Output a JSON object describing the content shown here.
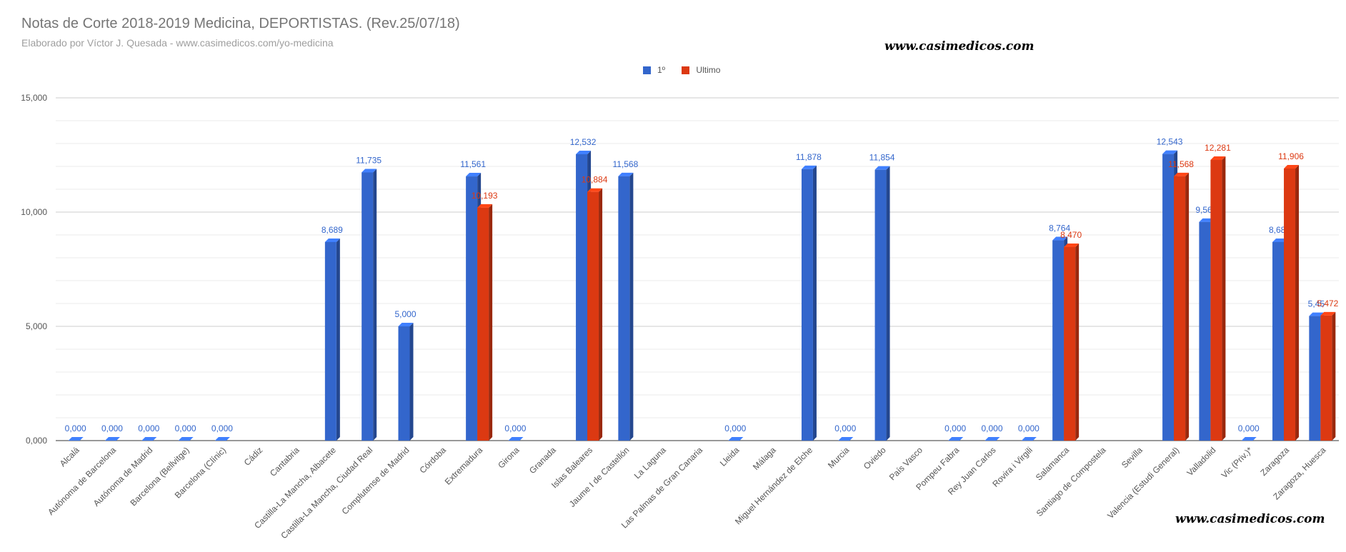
{
  "colors": {
    "first": "#3366cc",
    "last": "#dc3912",
    "grid": "#cccccc",
    "gridMinor": "#ebebeb",
    "axisText": "#555555"
  },
  "watermark_text": "www.casimedicos.com",
  "chart_data": {
    "type": "bar",
    "title": "Notas de Corte 2018-2019 Medicina, DEPORTISTAS. (Rev.25/07/18)",
    "subtitle": "Elaborado por Víctor J. Quesada - www.casimedicos.com/yo-medicina",
    "legend_position": "top",
    "grid": true,
    "ylim": [
      0,
      15
    ],
    "yticks": [
      0,
      5,
      10,
      15
    ],
    "ytick_labels": [
      "0,000",
      "5,000",
      "10,000",
      "15,000"
    ],
    "categories": [
      "Alcalá",
      "Autónoma de Barcelona",
      "Autónoma de Madrid",
      "Barcelona (Bellvitge)",
      "Barcelona (Clínic)",
      "Cádiz",
      "Cantabria",
      "Castilla-La Mancha, Albacete",
      "Castilla-La Mancha, Ciudad Real",
      "Complutense de Madrid",
      "Córdoba",
      "Extremadura",
      "Girona",
      "Granada",
      "Islas Baleares",
      "Jaume I de Castellón",
      "La Laguna",
      "Las Palmas de Gran Canaria",
      "Lleida",
      "Málaga",
      "Miguel Hernández de Elche",
      "Murcia",
      "Oviedo",
      "País Vasco",
      "Pompeu Fabra",
      "Rey Juan Carlos",
      "Rovira i Virgili",
      "Salamanca",
      "Santiago de Compostela",
      "Sevilla",
      "Valencia (Estudi General)",
      "Valladolid",
      "Vic (Priv.)*",
      "Zaragoza",
      "Zaragoza, Huesca"
    ],
    "series": [
      {
        "name": "1º",
        "values": [
          0,
          0,
          0,
          0,
          0,
          null,
          null,
          8.689,
          11.735,
          5.0,
          null,
          11.561,
          0,
          null,
          12.532,
          11.568,
          null,
          null,
          0,
          null,
          11.878,
          0,
          11.854,
          null,
          0,
          0,
          0,
          8.764,
          null,
          null,
          12.543,
          9.568,
          0,
          8.689,
          5.45
        ],
        "labels": [
          "0,000",
          "0,000",
          "0,000",
          "0,000",
          "0,000",
          null,
          null,
          "8,689",
          "11,735",
          "5,000",
          null,
          "11,561",
          "0,000",
          null,
          "12,532",
          "11,568",
          null,
          null,
          "0,000",
          null,
          "11,878",
          "0,000",
          "11,854",
          null,
          "0,000",
          "0,000",
          "0,000",
          "8,764",
          null,
          null,
          "12,543",
          "9,568",
          "0,000",
          "8,689",
          "5,45"
        ]
      },
      {
        "name": "Ultimo",
        "values": [
          null,
          null,
          null,
          null,
          null,
          null,
          null,
          null,
          null,
          null,
          null,
          10.193,
          null,
          null,
          10.884,
          null,
          null,
          null,
          null,
          null,
          null,
          null,
          null,
          null,
          null,
          null,
          null,
          8.47,
          null,
          null,
          11.568,
          12.281,
          null,
          11.906,
          5.472
        ],
        "labels": [
          null,
          null,
          null,
          null,
          null,
          null,
          null,
          null,
          null,
          null,
          null,
          "10,193",
          null,
          null,
          "10,884",
          null,
          null,
          null,
          null,
          null,
          null,
          null,
          null,
          null,
          null,
          null,
          null,
          "8,470",
          null,
          null,
          "11,568",
          "12,281",
          null,
          "11,906",
          "5,472"
        ]
      }
    ]
  }
}
